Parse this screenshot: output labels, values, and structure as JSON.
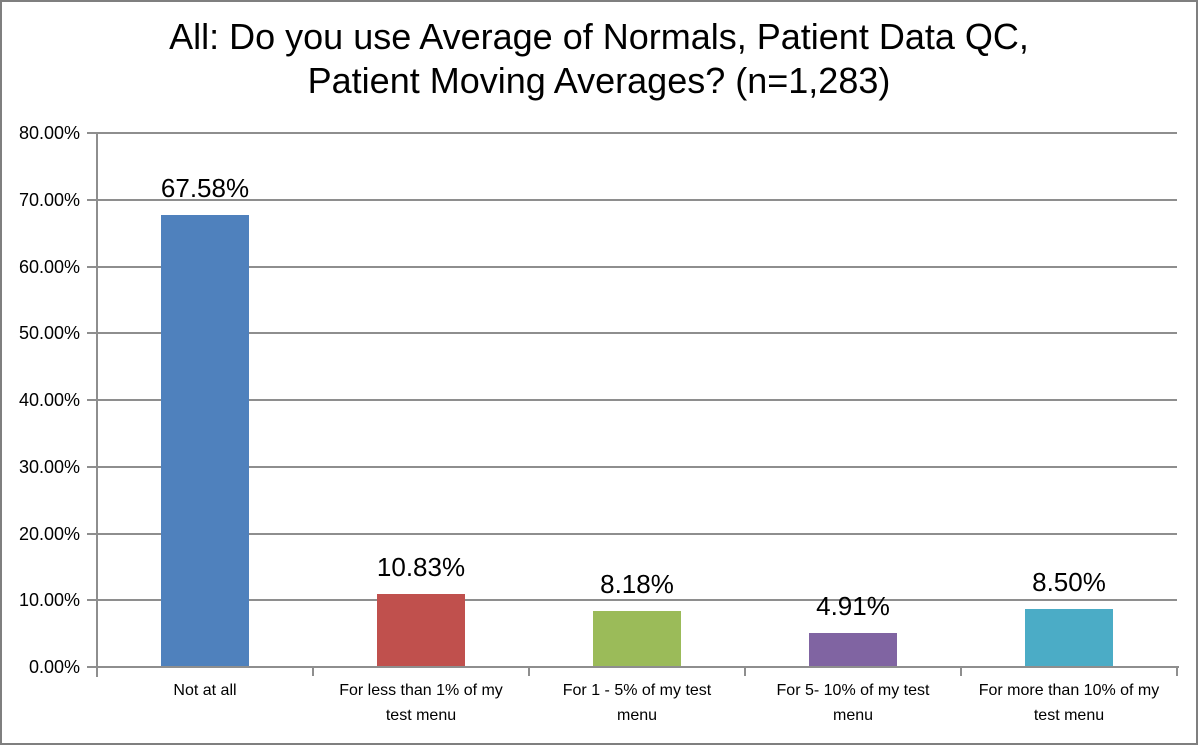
{
  "figure": {
    "background": "#FFFFFF",
    "border_color": "#7F7F7F"
  },
  "chart_data": {
    "type": "bar",
    "title": "All: Do you use Average of Normals, Patient Data QC, Patient Moving Averages? (n=1,283)",
    "title_lines": [
      "All: Do you use Average of Normals, Patient Data QC,",
      "Patient Moving Averages? (n=1,283)"
    ],
    "categories": [
      "Not at all",
      "For less than 1% of my test menu",
      "For 1 - 5% of my test menu",
      "For 5- 10% of my test menu",
      "For more than 10% of my test menu"
    ],
    "values": [
      67.58,
      10.83,
      8.18,
      4.91,
      8.5
    ],
    "data_labels": [
      "67.58%",
      "10.83%",
      "8.18%",
      "4.91%",
      "8.50%"
    ],
    "bar_colors": [
      "#4F81BD",
      "#C0504D",
      "#9BBB59",
      "#8064A2",
      "#4BACC6"
    ],
    "xlabel": "",
    "ylabel": "",
    "y_axis": {
      "min": 0,
      "max": 80,
      "tick_step": 10,
      "tick_labels": [
        "80.00%",
        "70.00%",
        "60.00%",
        "50.00%",
        "40.00%",
        "30.00%",
        "20.00%",
        "10.00%",
        "0.00%"
      ]
    },
    "grid": true,
    "legend": false,
    "grid_color": "#8E8E8E",
    "axis_color": "#8E8E8E",
    "text_color": "#000000"
  }
}
